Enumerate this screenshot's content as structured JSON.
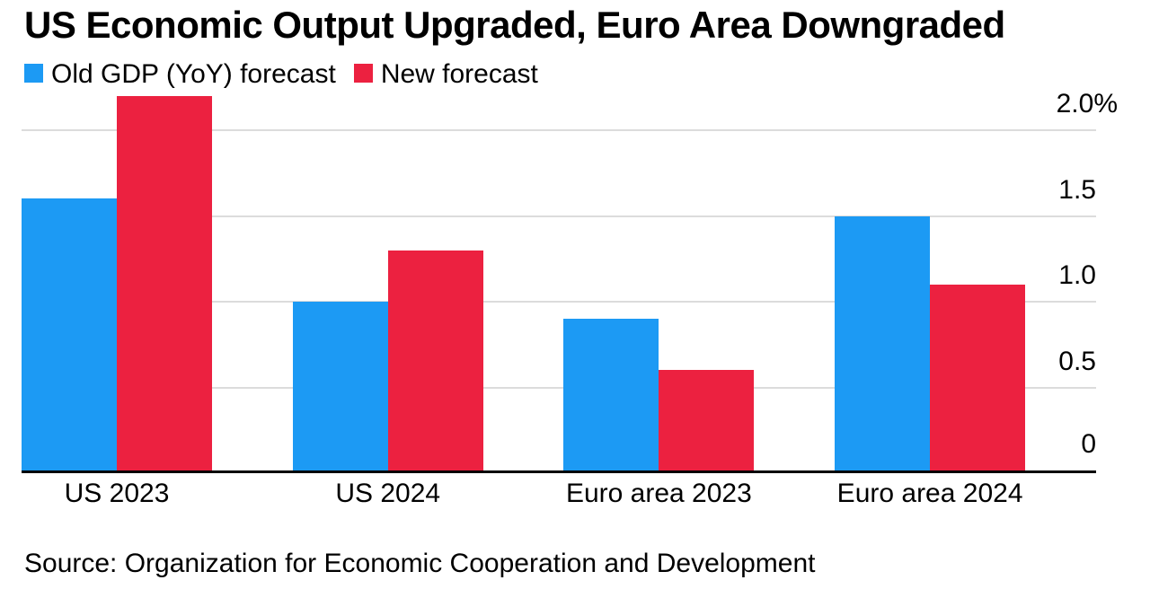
{
  "header": {
    "title": "US Economic Output Upgraded, Euro Area Downgraded"
  },
  "chart_data": {
    "type": "bar",
    "title": "US Economic Output Upgraded, Euro Area Downgraded",
    "categories": [
      "US 2023",
      "US 2024",
      "Euro area 2023",
      "Euro area 2024"
    ],
    "series": [
      {
        "name": "Old GDP (YoY) forecast",
        "color": "#1c9af4",
        "values": [
          1.6,
          1.0,
          0.9,
          1.5
        ]
      },
      {
        "name": "New forecast",
        "color": "#ec2140",
        "values": [
          2.2,
          1.3,
          0.6,
          1.1
        ]
      }
    ],
    "unit": "%",
    "y_ticks": [
      {
        "value": 0,
        "label": "0"
      },
      {
        "value": 0.5,
        "label": "0.5"
      },
      {
        "value": 1.0,
        "label": "1.0"
      },
      {
        "value": 1.5,
        "label": "1.5"
      },
      {
        "value": 2.0,
        "label": "2.0%"
      }
    ],
    "ylim": [
      0,
      2.3
    ],
    "grid": "horizontal",
    "tick_side": "right",
    "legend_position": "top-left",
    "colors": {
      "axis_line": "#000000",
      "gridline": "#dcdcdc",
      "text": "#000000",
      "background": "#ffffff"
    }
  },
  "footer": {
    "source": "Source: Organization for Economic Cooperation and Development"
  }
}
